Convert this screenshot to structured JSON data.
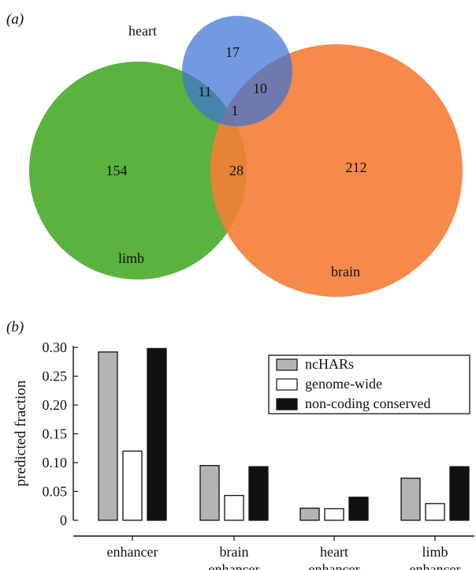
{
  "panel_a": {
    "label": "(a)",
    "circles": [
      {
        "name": "heart",
        "color": "#4a7fd0"
      },
      {
        "name": "limb",
        "color": "#4dab2e"
      },
      {
        "name": "brain",
        "color": "#f47d36"
      }
    ],
    "counts": {
      "heart_only": "17",
      "heart_limb": "11",
      "heart_brain": "10",
      "all_three": "1",
      "limb_only": "154",
      "limb_brain": "28",
      "brain_only": "212"
    }
  },
  "panel_b": {
    "label": "(b)"
  },
  "chart_data": {
    "type": "bar",
    "ylabel": "predicted fraction",
    "xlabel": "",
    "ylim": [
      0,
      0.3
    ],
    "yticks": [
      "0",
      "0.05",
      "0.10",
      "0.15",
      "0.20",
      "0.25",
      "0.30"
    ],
    "categories": [
      [
        "enhancer"
      ],
      [
        "brain",
        "enhancer"
      ],
      [
        "heart",
        "enhancer"
      ],
      [
        "limb",
        "enhancer"
      ]
    ],
    "series": [
      {
        "name": "ncHARs",
        "color": "#b4b4b4",
        "values": [
          0.292,
          0.095,
          0.021,
          0.073
        ]
      },
      {
        "name": "genome-wide",
        "color": "#ffffff",
        "values": [
          0.12,
          0.043,
          0.02,
          0.029
        ]
      },
      {
        "name": "non-coding conserved",
        "color": "#111111",
        "values": [
          0.298,
          0.093,
          0.04,
          0.093
        ]
      }
    ],
    "legend_position": "top-right"
  }
}
